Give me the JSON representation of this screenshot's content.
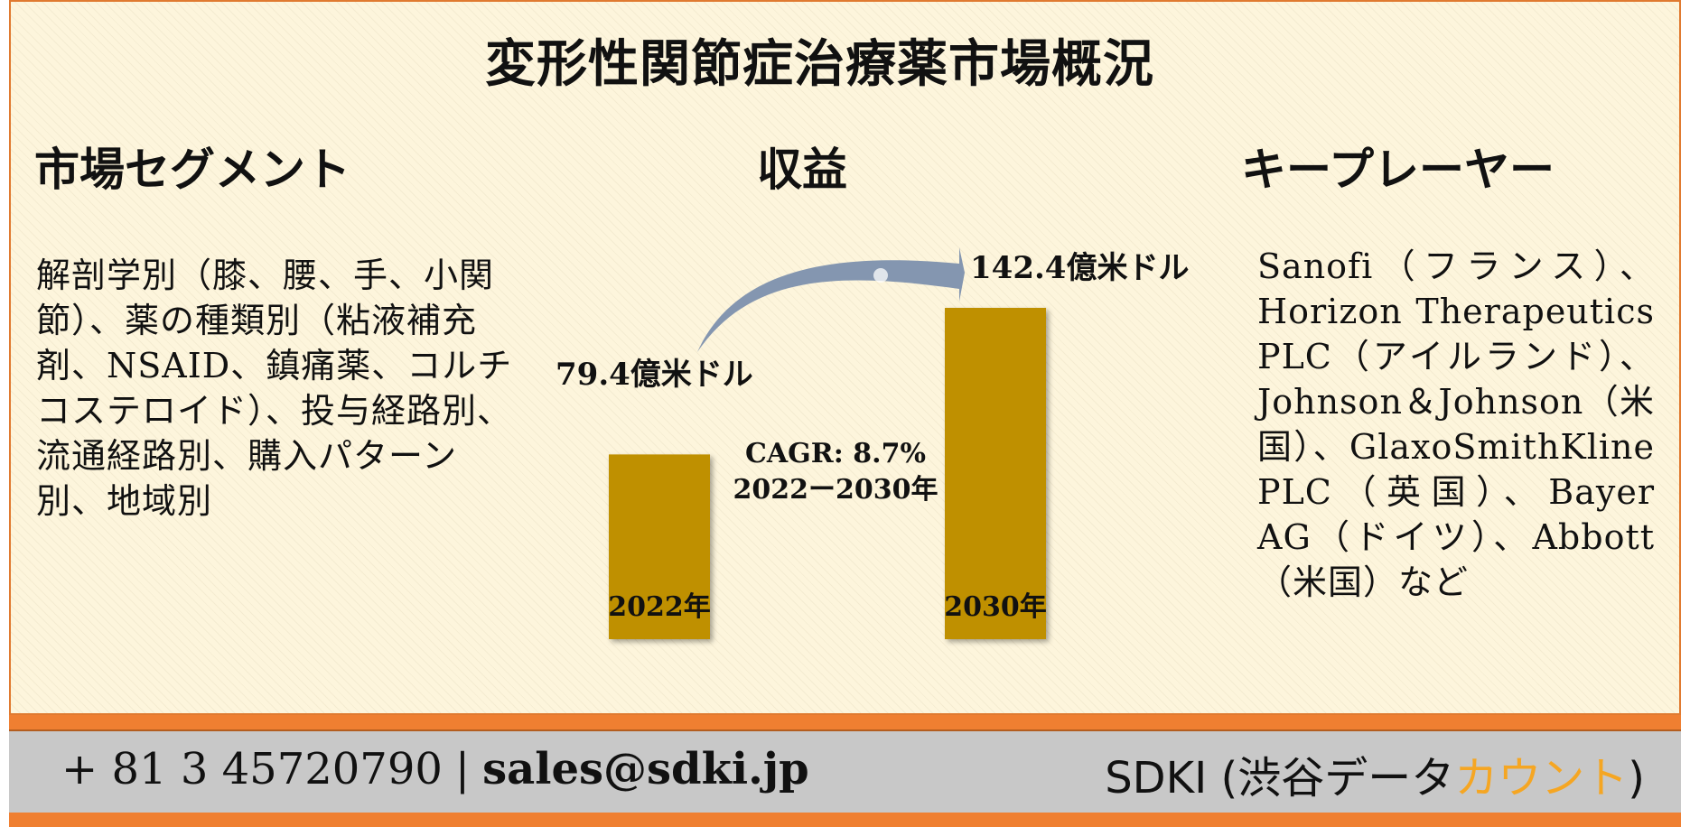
{
  "title": "変形性関節症治療薬市場概況",
  "headers": {
    "segments": "市場セグメント",
    "revenue": "収益",
    "players": "キープレーヤー"
  },
  "segments_text": "解剖学別（膝、腰、手、小関節）、薬の種類別（粘液補充剤、NSAID、鎮痛薬、コルチコステロイド）、投与経路別、流通経路別、購入パターン別、地域別",
  "players_text": "Sanofi（フランス）、Horizon Therapeutics PLC（アイルランド）、Johnson＆Johnson（米国）、GlaxoSmithKline PLC（英国）、Bayer AG（ドイツ）、Abbott（米国）など",
  "chart_data": {
    "type": "bar",
    "categories": [
      "2022年",
      "2030年"
    ],
    "values": [
      79.4,
      142.4
    ],
    "value_labels": [
      "79.4億米ドル",
      "142.4億米ドル"
    ],
    "unit": "億米ドル",
    "cagr_label": "CAGR: 8.7%",
    "period_label": "2022ー2030年",
    "bar_color": "#bf9000",
    "arrow_color": "#8496b0"
  },
  "footer": {
    "phone": "+ 81 3 45720790",
    "separator": "|",
    "email": "sales@sdki.jp",
    "brand_main": "SDKI (渋谷データ",
    "brand_accent": "カウント",
    "brand_close": ")",
    "accent_color": "#f5a623"
  }
}
